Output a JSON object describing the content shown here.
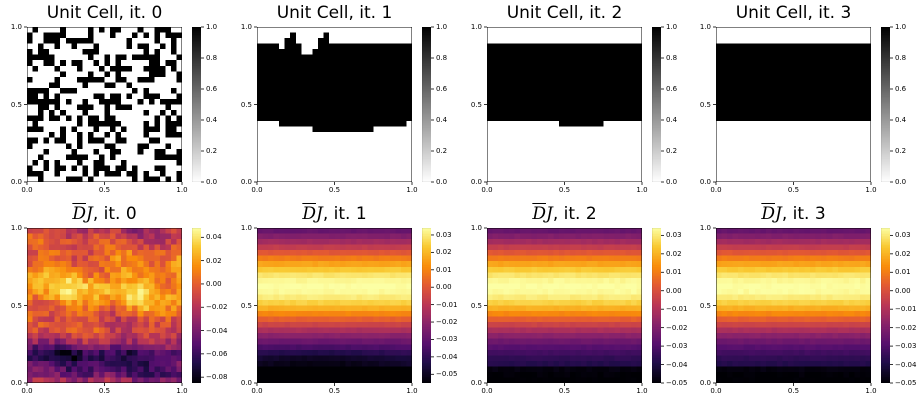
{
  "chart_data": [
    {
      "type": "heatmap",
      "title": "Unit Cell, it. 0",
      "kind": "binary",
      "colormap": "gray_r",
      "grid": [
        28,
        28
      ],
      "xlim": [
        0,
        1
      ],
      "ylim": [
        0,
        1
      ],
      "xticks": [
        "0.0",
        "0.5",
        "1.0"
      ],
      "yticks": [
        "0.0",
        "0.5",
        "1.0"
      ],
      "colorbar_ticks": [
        "0.0",
        "0.2",
        "0.4",
        "0.6",
        "0.8",
        "1.0"
      ],
      "colorbar_range": [
        0,
        1
      ]
    },
    {
      "type": "heatmap",
      "title": "Unit Cell, it. 1",
      "kind": "binary",
      "colormap": "gray_r",
      "grid": [
        28,
        28
      ],
      "band_lower_edge_y": 0.38,
      "band_upper_edge_y": 0.88,
      "xlim": [
        0,
        1
      ],
      "ylim": [
        0,
        1
      ],
      "xticks": [
        "0.0",
        "0.5",
        "1.0"
      ],
      "yticks": [
        "0.0",
        "0.5",
        "1.0"
      ],
      "colorbar_ticks": [
        "0.0",
        "0.2",
        "0.4",
        "0.6",
        "0.8",
        "1.0"
      ],
      "colorbar_range": [
        0,
        1
      ]
    },
    {
      "type": "heatmap",
      "title": "Unit Cell, it. 2",
      "kind": "binary",
      "colormap": "gray_r",
      "grid": [
        28,
        28
      ],
      "band_lower_edge_y": 0.38,
      "band_upper_edge_y": 0.88,
      "xlim": [
        0,
        1
      ],
      "ylim": [
        0,
        1
      ],
      "xticks": [
        "0.0",
        "0.5",
        "1.0"
      ],
      "yticks": [
        "0.0",
        "0.5",
        "1.0"
      ],
      "colorbar_ticks": [
        "0.0",
        "0.2",
        "0.4",
        "0.6",
        "0.8",
        "1.0"
      ],
      "colorbar_range": [
        0,
        1
      ]
    },
    {
      "type": "heatmap",
      "title": "Unit Cell, it. 3",
      "kind": "binary",
      "colormap": "gray_r",
      "grid": [
        28,
        28
      ],
      "band_lower_edge_y": 0.38,
      "band_upper_edge_y": 0.88,
      "xlim": [
        0,
        1
      ],
      "ylim": [
        0,
        1
      ],
      "xticks": [
        "0.0",
        "0.5",
        "1.0"
      ],
      "yticks": [
        "0.0",
        "0.5",
        "1.0"
      ],
      "colorbar_ticks": [
        "0.0",
        "0.2",
        "0.4",
        "0.6",
        "0.8",
        "1.0"
      ],
      "colorbar_range": [
        0,
        1
      ]
    },
    {
      "type": "heatmap",
      "title": "DJ, it. 0",
      "kind": "field",
      "colormap": "inferno",
      "grid": [
        28,
        28
      ],
      "xlim": [
        0,
        1
      ],
      "ylim": [
        0,
        1
      ],
      "xticks": [
        "0.0",
        "0.5",
        "1.0"
      ],
      "yticks": [
        "0.0",
        "0.5",
        "1.0"
      ],
      "colorbar_ticks": [
        "−0.08",
        "−0.06",
        "−0.04",
        "−0.02",
        "0.00",
        "0.02",
        "0.04"
      ],
      "colorbar_range": [
        -0.085,
        0.048
      ]
    },
    {
      "type": "heatmap",
      "title": "DJ, it. 1",
      "kind": "field",
      "colormap": "inferno",
      "grid": [
        28,
        28
      ],
      "xlim": [
        0,
        1
      ],
      "ylim": [
        0,
        1
      ],
      "xticks": [
        "0.0",
        "0.5",
        "1.0"
      ],
      "yticks": [
        "0.0",
        "0.5",
        "1.0"
      ],
      "colorbar_ticks": [
        "−0.05",
        "−0.04",
        "−0.03",
        "−0.02",
        "−0.01",
        "0.00",
        "0.01",
        "0.02",
        "0.03"
      ],
      "colorbar_range": [
        -0.055,
        0.034
      ]
    },
    {
      "type": "heatmap",
      "title": "DJ, it. 2",
      "kind": "field",
      "colormap": "inferno",
      "grid": [
        28,
        28
      ],
      "xlim": [
        0,
        1
      ],
      "ylim": [
        0,
        1
      ],
      "xticks": [
        "0.0",
        "0.5",
        "1.0"
      ],
      "yticks": [
        "0.0",
        "0.5",
        "1.0"
      ],
      "colorbar_ticks": [
        "−0.05",
        "−0.04",
        "−0.03",
        "−0.02",
        "−0.01",
        "0.00",
        "0.01",
        "0.02",
        "0.03"
      ],
      "colorbar_range": [
        -0.05,
        0.034
      ]
    },
    {
      "type": "heatmap",
      "title": "DJ, it. 3",
      "kind": "field",
      "colormap": "inferno",
      "grid": [
        28,
        28
      ],
      "xlim": [
        0,
        1
      ],
      "ylim": [
        0,
        1
      ],
      "xticks": [
        "0.0",
        "0.5",
        "1.0"
      ],
      "yticks": [
        "0.0",
        "0.5",
        "1.0"
      ],
      "colorbar_ticks": [
        "−0.05",
        "−0.04",
        "−0.03",
        "−0.02",
        "−0.01",
        "0.00",
        "0.01",
        "0.02",
        "0.03"
      ],
      "colorbar_range": [
        -0.05,
        0.034
      ]
    }
  ]
}
